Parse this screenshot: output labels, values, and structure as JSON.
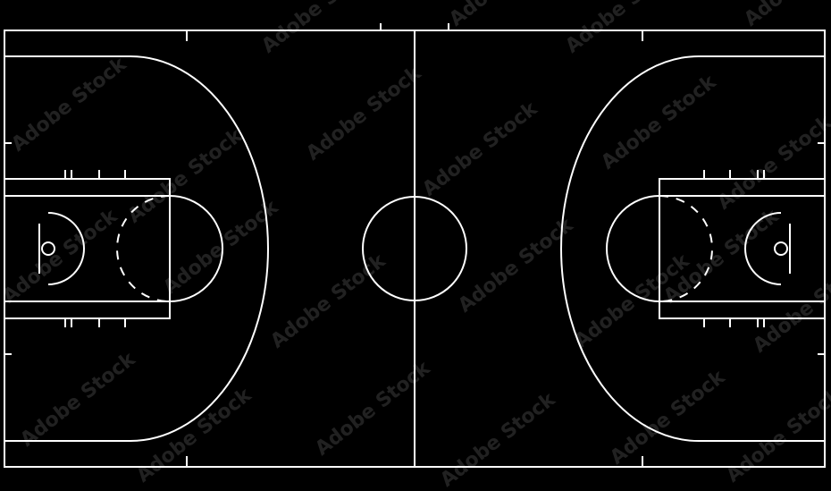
{
  "colors": {
    "background": "#000000",
    "lines": "#ffffff"
  },
  "watermark": {
    "text": "Adobe Stock"
  }
}
